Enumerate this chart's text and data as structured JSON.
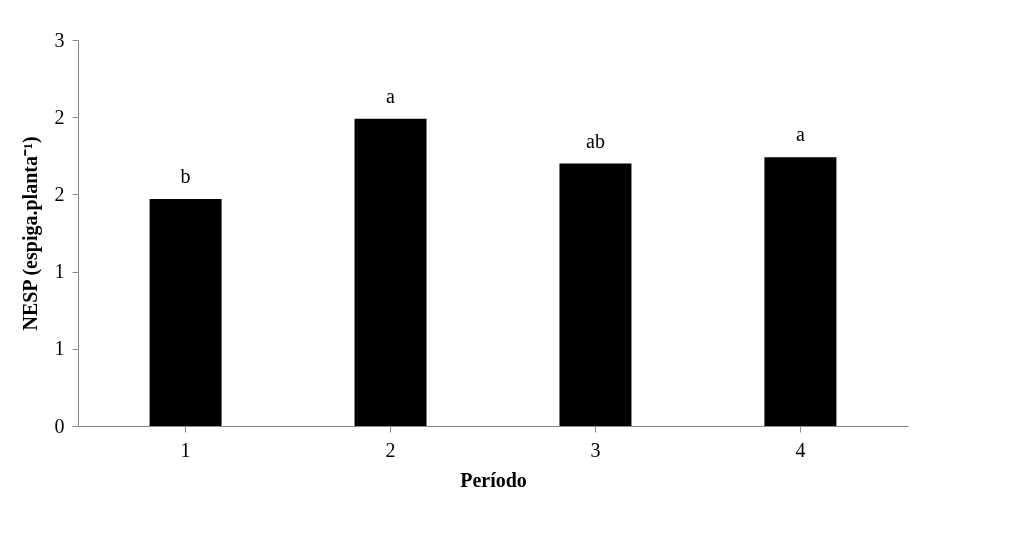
{
  "chart_data": {
    "type": "bar",
    "xlabel": "Período",
    "ylabel": "NESP (espiga.planta⁻¹)",
    "categories": [
      "1",
      "2",
      "3",
      "4"
    ],
    "values": [
      1.47,
      1.99,
      1.7,
      1.74
    ],
    "color": "#000000",
    "ylim": [
      0,
      2.5
    ],
    "yticks": [
      0,
      {
        "value": 0.5,
        "label": "1"
      },
      1,
      {
        "value": 1.5,
        "label": "2"
      },
      2,
      {
        "value": 2.5,
        "label": "3"
      }
    ],
    "annotations": [
      {
        "text": "b",
        "x": "1",
        "y": 1.47
      },
      {
        "text": "a",
        "x": "2",
        "y": 1.99
      },
      {
        "text": "ab",
        "x": "3",
        "y": 1.7
      },
      {
        "text": "a",
        "x": "4",
        "y": 1.74
      }
    ],
    "grid": false
  }
}
